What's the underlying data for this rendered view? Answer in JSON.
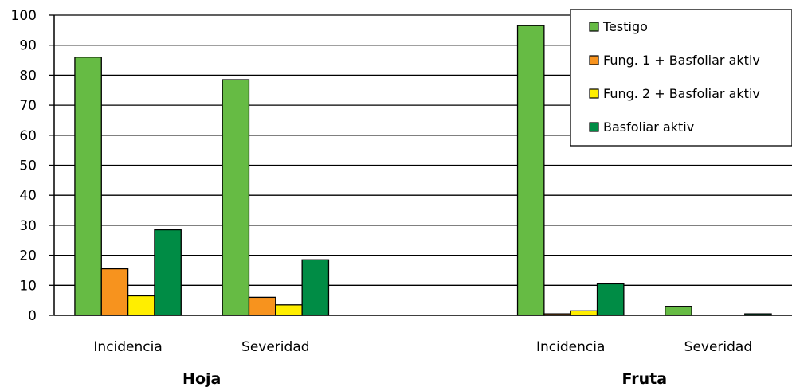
{
  "chart_data": {
    "type": "bar",
    "categories": [
      "Incidencia",
      "Severidad",
      "",
      "Incidencia",
      "Severidad"
    ],
    "groups": [
      {
        "label": "Hoja",
        "categories": [
          "Incidencia",
          "Severidad"
        ]
      },
      {
        "label": "Fruta",
        "categories": [
          "Incidencia",
          "Severidad"
        ]
      }
    ],
    "series": [
      {
        "name": "Testigo",
        "color": "#66BB44",
        "values": [
          86,
          78.5,
          null,
          96.5,
          3
        ]
      },
      {
        "name": "Fung. 1 + Basfoliar aktiv",
        "color": "#F7931E",
        "values": [
          15.5,
          6,
          null,
          0.5,
          0
        ]
      },
      {
        "name": "Fung. 2 + Basfoliar aktiv",
        "color": "#FFEE00",
        "values": [
          6.5,
          3.5,
          null,
          1.5,
          0
        ]
      },
      {
        "name": "Basfoliar aktiv",
        "color": "#008C45",
        "values": [
          28.5,
          18.5,
          null,
          10.5,
          0.5
        ]
      }
    ],
    "ylim": [
      0,
      100
    ],
    "yticks": [
      0,
      10,
      20,
      30,
      40,
      50,
      60,
      70,
      80,
      90,
      100
    ],
    "grid": true,
    "legend": "top-right",
    "title": "",
    "xlabel": "",
    "ylabel": ""
  }
}
